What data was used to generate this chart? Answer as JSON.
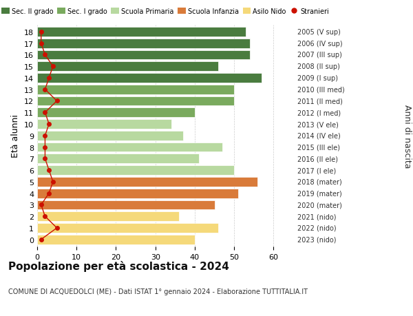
{
  "ages": [
    18,
    17,
    16,
    15,
    14,
    13,
    12,
    11,
    10,
    9,
    8,
    7,
    6,
    5,
    4,
    3,
    2,
    1,
    0
  ],
  "years_labels": [
    "2005 (V sup)",
    "2006 (IV sup)",
    "2007 (III sup)",
    "2008 (II sup)",
    "2009 (I sup)",
    "2010 (III med)",
    "2011 (II med)",
    "2012 (I med)",
    "2013 (V ele)",
    "2014 (IV ele)",
    "2015 (III ele)",
    "2016 (II ele)",
    "2017 (I ele)",
    "2018 (mater)",
    "2019 (mater)",
    "2020 (mater)",
    "2021 (nido)",
    "2022 (nido)",
    "2023 (nido)"
  ],
  "bar_values": [
    53,
    54,
    54,
    46,
    57,
    50,
    50,
    40,
    34,
    37,
    47,
    41,
    50,
    56,
    51,
    45,
    36,
    46,
    40
  ],
  "bar_colors": [
    "#4a7c3f",
    "#4a7c3f",
    "#4a7c3f",
    "#4a7c3f",
    "#4a7c3f",
    "#7aaa5e",
    "#7aaa5e",
    "#7aaa5e",
    "#b8d9a0",
    "#b8d9a0",
    "#b8d9a0",
    "#b8d9a0",
    "#b8d9a0",
    "#d97b3a",
    "#d97b3a",
    "#d97b3a",
    "#f5d97a",
    "#f5d97a",
    "#f5d97a"
  ],
  "stranieri_values": [
    1,
    1,
    2,
    4,
    3,
    2,
    5,
    2,
    3,
    2,
    2,
    2,
    3,
    4,
    3,
    1,
    2,
    5,
    1
  ],
  "legend_labels": [
    "Sec. II grado",
    "Sec. I grado",
    "Scuola Primaria",
    "Scuola Infanzia",
    "Asilo Nido",
    "Stranieri"
  ],
  "legend_colors": [
    "#4a7c3f",
    "#7aaa5e",
    "#b8d9a0",
    "#d97b3a",
    "#f5d97a",
    "#cc1100"
  ],
  "ylabel_left": "Età alunni",
  "ylabel_right": "Anni di nascita",
  "title": "Popolazione per età scolastica - 2024",
  "subtitle": "COMUNE DI ACQUEDOLCI (ME) - Dati ISTAT 1° gennaio 2024 - Elaborazione TUTTITALIA.IT",
  "xlim": [
    0,
    65
  ],
  "xticks": [
    0,
    10,
    20,
    30,
    40,
    50,
    60
  ],
  "bar_height": 0.82
}
